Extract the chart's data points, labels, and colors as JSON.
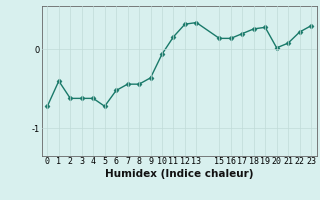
{
  "xlabel": "Humidex (Indice chaleur)",
  "ylabel": "",
  "x_values": [
    0,
    1,
    2,
    3,
    4,
    5,
    6,
    7,
    8,
    9,
    10,
    11,
    12,
    13,
    15,
    16,
    17,
    18,
    19,
    20,
    21,
    22,
    23
  ],
  "y_values": [
    -0.72,
    -0.4,
    -0.62,
    -0.62,
    -0.62,
    -0.72,
    -0.52,
    -0.44,
    -0.44,
    -0.36,
    -0.06,
    0.16,
    0.32,
    0.34,
    0.14,
    0.14,
    0.2,
    0.26,
    0.28,
    0.02,
    0.08,
    0.22,
    0.3
  ],
  "line_color": "#1a7a6a",
  "marker_color": "#1a7a6a",
  "bg_color": "#d8f0ee",
  "grid_color": "#c0dbd8",
  "axis_color": "#666666",
  "ylim": [
    -1.35,
    0.55
  ],
  "yticks": [
    -1,
    0
  ],
  "ytick_labels": [
    "-1",
    "0"
  ],
  "xlim": [
    -0.5,
    23.5
  ],
  "xticks": [
    0,
    1,
    2,
    3,
    4,
    5,
    6,
    7,
    8,
    9,
    10,
    11,
    12,
    13,
    15,
    16,
    17,
    18,
    19,
    20,
    21,
    22,
    23
  ],
  "xlabel_fontsize": 7.5,
  "tick_fontsize": 6.0,
  "line_width": 1.0,
  "marker_size": 2.5
}
